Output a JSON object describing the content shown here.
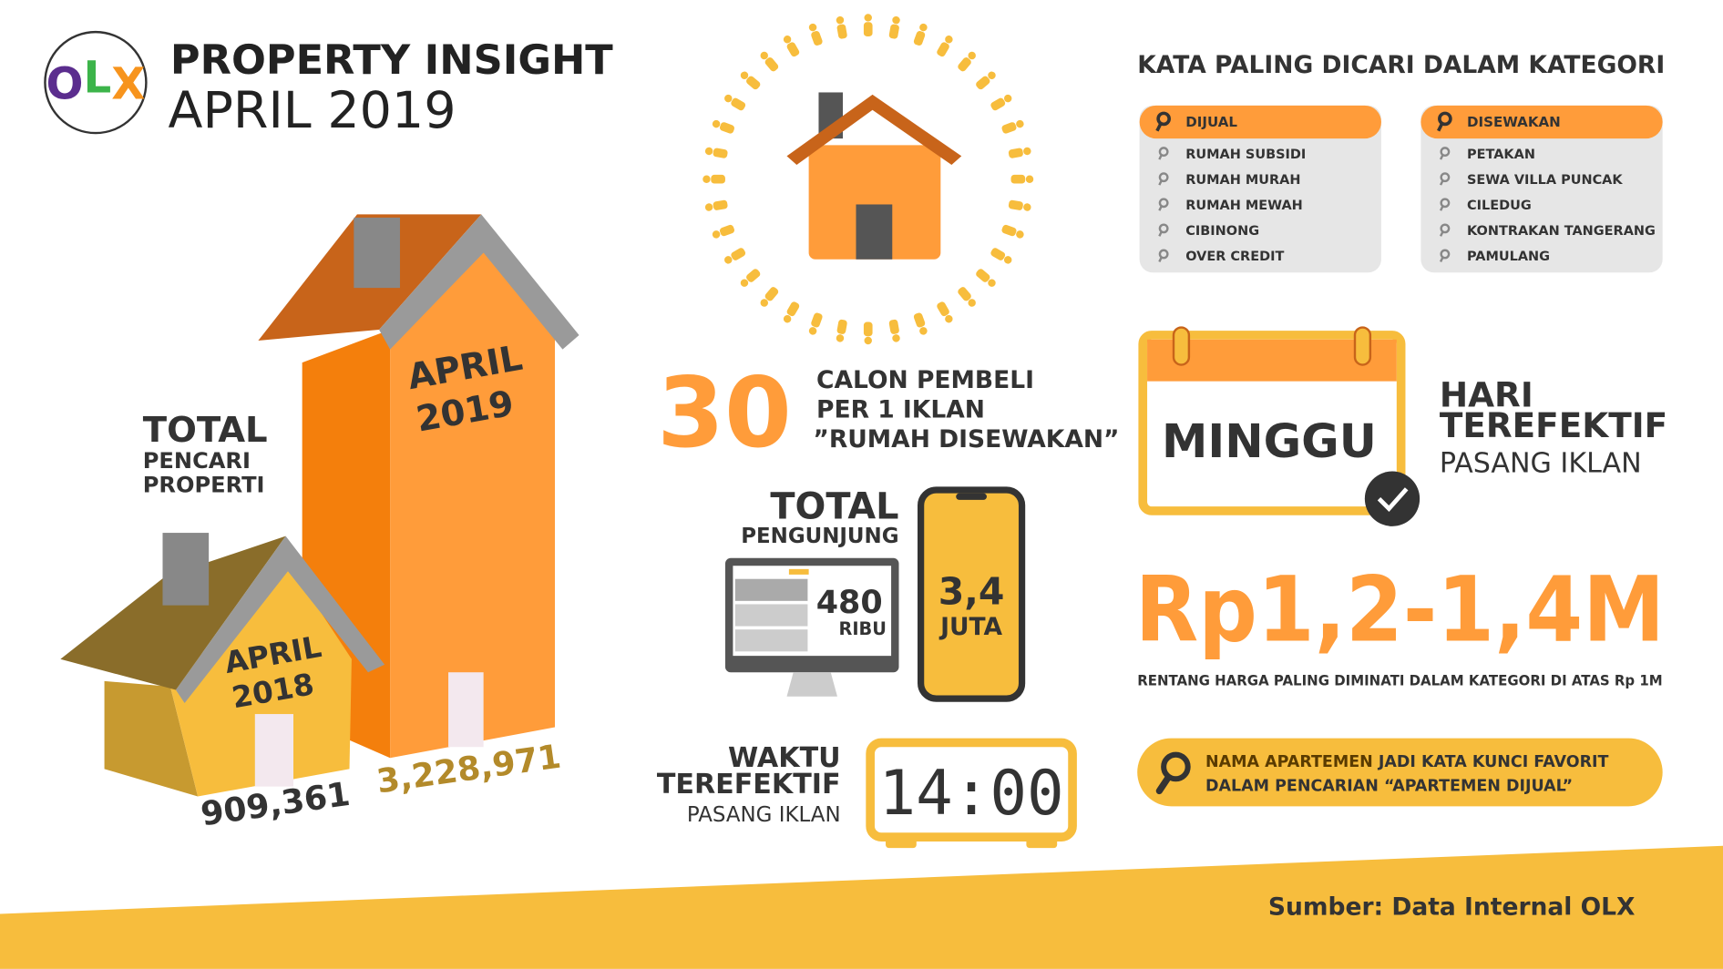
{
  "header": {
    "logo": [
      "O",
      "L",
      "X"
    ],
    "title": "PROPERTY INSIGHT",
    "subtitle": "APRIL 2019"
  },
  "pencari": {
    "lines": [
      "TOTAL",
      "PENCARI",
      "PROPERTI"
    ],
    "houses": [
      {
        "label": [
          "APRIL",
          "2018"
        ],
        "value": "909,361"
      },
      {
        "label": [
          "APRIL",
          "2019"
        ],
        "value": "3,228,971"
      }
    ]
  },
  "calon": {
    "number": "30",
    "lines": [
      "CALON PEMBELI",
      "PER 1 IKLAN",
      "”RUMAH DISEWAKAN”"
    ]
  },
  "pengunjung": {
    "lines": [
      "TOTAL",
      "PENGUNJUNG"
    ],
    "desktop": {
      "value": "480",
      "unit": "RIBU"
    },
    "mobile": {
      "value": "3,4",
      "unit": "JUTA"
    }
  },
  "waktu": {
    "lines": [
      "WAKTU",
      "TEREFEKTIF",
      "PASANG IKLAN"
    ],
    "time": "14:00"
  },
  "keywords": {
    "title": "KATA PALING DICARI DALAM KATEGORI",
    "lists": [
      {
        "header": "DIJUAL",
        "items": [
          "RUMAH SUBSIDI",
          "RUMAH MURAH",
          "RUMAH MEWAH",
          "CIBINONG",
          "OVER CREDIT"
        ]
      },
      {
        "header": "DISEWAKAN",
        "items": [
          "PETAKAN",
          "SEWA VILLA PUNCAK",
          "CILEDUG",
          "KONTRAKAN TANGERANG",
          "PAMULANG"
        ]
      }
    ]
  },
  "hari": {
    "day": "MINGGU",
    "lines": [
      "HARI",
      "TEREFEKTIF",
      "PASANG IKLAN"
    ]
  },
  "harga": {
    "range": "Rp1,2-1,4M",
    "caption": "RENTANG HARGA PALING DIMINATI DALAM KATEGORI DI ATAS Rp 1M"
  },
  "apartemen": {
    "highlight": "NAMA APARTEMEN",
    "line1_rest": " JADI KATA KUNCI FAVORIT",
    "line2": "DALAM PENCARIAN “APARTEMEN DIJUAL”"
  },
  "footer": {
    "source": "Sumber: Data Internal OLX"
  }
}
